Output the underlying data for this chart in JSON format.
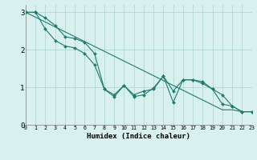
{
  "xlabel": "Humidex (Indice chaleur)",
  "background_color": "#d8f0ee",
  "grid_color": "#b0d8d4",
  "line_color": "#1e7b6e",
  "x": [
    0,
    1,
    2,
    3,
    4,
    5,
    6,
    7,
    8,
    9,
    10,
    11,
    12,
    13,
    14,
    15,
    16,
    17,
    18,
    19,
    20,
    21,
    22,
    23
  ],
  "line_upper": [
    3.0,
    3.0,
    2.85,
    2.65,
    2.35,
    2.3,
    2.2,
    1.9,
    0.95,
    0.8,
    1.05,
    0.8,
    0.9,
    0.95,
    1.3,
    0.9,
    1.2,
    1.2,
    1.15,
    0.95,
    0.8,
    0.5,
    0.35,
    0.35
  ],
  "line_mid": [
    3.0,
    2.87,
    2.74,
    2.61,
    2.48,
    2.35,
    2.22,
    2.09,
    1.96,
    1.83,
    1.7,
    1.57,
    1.44,
    1.31,
    1.18,
    1.05,
    0.92,
    0.79,
    0.66,
    0.53,
    0.4,
    0.4,
    0.35,
    0.35
  ],
  "line_lower": [
    3.0,
    3.0,
    2.55,
    2.25,
    2.1,
    2.05,
    1.9,
    1.6,
    0.95,
    0.75,
    1.05,
    0.75,
    0.8,
    0.98,
    1.3,
    0.6,
    1.2,
    1.2,
    1.1,
    0.95,
    0.55,
    0.5,
    0.35,
    0.35
  ],
  "ylim": [
    0,
    3.2
  ],
  "yticks": [
    0,
    1,
    2,
    3
  ],
  "xlim": [
    0,
    23
  ],
  "figwidth": 3.2,
  "figheight": 2.0,
  "dpi": 100
}
